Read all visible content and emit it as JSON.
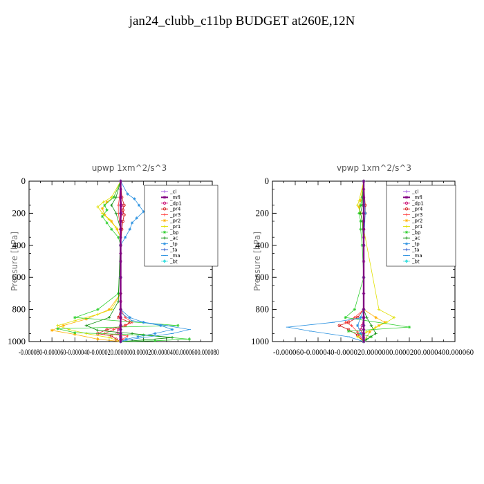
{
  "title": "jan24_clubb_c11bp  BUDGET at260E,12N",
  "chart_data": [
    {
      "type": "line",
      "title": "upwp   1xm^2/s^3",
      "ylabel": "Pressure [hPa]",
      "ylim": [
        1000,
        0
      ],
      "y_ticks": [
        "0",
        "200",
        "400",
        "600",
        "800",
        "1000"
      ],
      "x_tick_labels": "-0.000080-0.000060-0.000040-0.000020.0000000.0000200.0000400.0000600.000080",
      "legend_position": "top-right",
      "series": [
        {
          "name": "_cl",
          "color": "#a050e0",
          "x": [
            0,
            0,
            0,
            0,
            0,
            0,
            0,
            0,
            0,
            0,
            0,
            0,
            0,
            0,
            0,
            0,
            0,
            0,
            0,
            0,
            0,
            0,
            0
          ],
          "y": [
            0,
            50,
            100,
            150,
            200,
            250,
            300,
            350,
            400,
            500,
            600,
            700,
            750,
            800,
            850,
            900,
            925,
            950,
            970,
            985,
            1000,
            500,
            0
          ]
        },
        {
          "name": "_mfl",
          "color": "#800080",
          "x": [
            0,
            0,
            0,
            0,
            0,
            0,
            0,
            0,
            0,
            0,
            0,
            0,
            0,
            0,
            0,
            0,
            0,
            0,
            0,
            0,
            0
          ],
          "y": [
            0,
            50,
            100,
            150,
            200,
            250,
            300,
            350,
            400,
            450,
            500,
            600,
            700,
            800,
            850,
            900,
            925,
            950,
            970,
            985,
            1000
          ]
        },
        {
          "name": "_dp1",
          "color": "#c8006e",
          "x": [
            0,
            0,
            1e-06,
            1e-06,
            0,
            0,
            0,
            0,
            0,
            0,
            0,
            -2e-06,
            -3e-06,
            0,
            0,
            0
          ],
          "y": [
            0,
            100,
            150,
            200,
            250,
            300,
            400,
            600,
            750,
            850,
            900,
            925,
            950,
            970,
            985,
            1000
          ]
        },
        {
          "name": "_pr4",
          "color": "#d01010",
          "x": [
            0,
            1e-06,
            3e-06,
            2e-06,
            3e-06,
            2e-06,
            1e-06,
            0,
            0,
            -2e-06,
            8e-06,
            4e-06,
            -1.2e-05,
            -2e-05,
            -8e-06,
            -4e-06,
            0
          ],
          "y": [
            0,
            100,
            150,
            180,
            210,
            250,
            300,
            400,
            800,
            850,
            880,
            900,
            925,
            950,
            965,
            985,
            1000
          ]
        },
        {
          "name": "_pr3",
          "color": "#ff4040",
          "x": [
            0,
            -1e-06,
            -2e-06,
            -2e-06,
            -1e-06,
            0,
            0,
            4e-06,
            1e-05,
            4e-06,
            -6e-06,
            -1.4e-05,
            6e-06,
            2e-06,
            0
          ],
          "y": [
            0,
            100,
            150,
            200,
            250,
            300,
            800,
            850,
            880,
            900,
            925,
            950,
            965,
            985,
            1000
          ]
        },
        {
          "name": "_pr2",
          "color": "#ffb000",
          "x": [
            0,
            -6e-06,
            -1.2e-05,
            -1.6e-05,
            -1.4e-05,
            -8e-06,
            -3e-06,
            0,
            0,
            -1e-05,
            -3e-05,
            -5e-05,
            -6e-05,
            -4e-05,
            -2e-05,
            0
          ],
          "y": [
            0,
            100,
            130,
            170,
            210,
            250,
            300,
            350,
            700,
            800,
            860,
            900,
            930,
            955,
            985,
            1000
          ]
        },
        {
          "name": "_pr1",
          "color": "#e0e000",
          "x": [
            0,
            -8e-06,
            -1.5e-05,
            -2e-05,
            -1.6e-05,
            -1e-05,
            -4e-06,
            0,
            0,
            -8e-06,
            -2e-05,
            -4e-05,
            -5.5e-05,
            -4.5e-05,
            -3e-05,
            -1e-05,
            0
          ],
          "y": [
            0,
            100,
            130,
            160,
            200,
            240,
            290,
            350,
            700,
            800,
            830,
            870,
            900,
            925,
            950,
            975,
            1000
          ]
        },
        {
          "name": "_bp",
          "color": "#30d030",
          "x": [
            0,
            -6e-06,
            -1.4e-05,
            -1.2e-05,
            -1.6e-05,
            -1.2e-05,
            -8e-06,
            -2e-06,
            0,
            -2e-06,
            -2e-05,
            -4e-05,
            5e-05,
            -5.5e-05,
            -4e-05,
            2e-05,
            6e-05,
            3e-05,
            0
          ],
          "y": [
            0,
            100,
            150,
            180,
            220,
            260,
            300,
            350,
            400,
            700,
            800,
            850,
            900,
            920,
            945,
            960,
            985,
            995,
            1000
          ]
        },
        {
          "name": "_ac",
          "color": "#109010",
          "x": [
            0,
            -4e-06,
            -8e-06,
            -4e-06,
            0,
            -2e-06,
            -1e-05,
            -3e-05,
            -2e-05,
            1e-05,
            4.5e-05,
            2e-05,
            0
          ],
          "y": [
            0,
            100,
            150,
            200,
            300,
            750,
            850,
            900,
            930,
            950,
            975,
            990,
            1000
          ]
        },
        {
          "name": "_tp",
          "color": "#2890e0",
          "x": [
            0,
            6e-06,
            1.2e-05,
            1.6e-05,
            2e-05,
            1.4e-05,
            1e-05,
            8e-06,
            4e-06,
            0,
            0,
            8e-06,
            2e-05,
            3.5e-05,
            4.5e-05,
            3e-05,
            1.5e-05,
            5e-06,
            0
          ],
          "y": [
            0,
            80,
            110,
            150,
            190,
            230,
            260,
            300,
            350,
            400,
            800,
            850,
            880,
            900,
            925,
            950,
            970,
            985,
            1000
          ]
        },
        {
          "name": "_ta",
          "color": "#1e50c8",
          "x": [
            0,
            0,
            0,
            0,
            0,
            0,
            0,
            0,
            0,
            0,
            0
          ],
          "y": [
            0,
            200,
            400,
            600,
            800,
            900,
            925,
            950,
            970,
            985,
            1000
          ]
        },
        {
          "name": "_ma",
          "color": "#2890e0",
          "x": [
            0,
            0,
            1e-05,
            4e-05,
            6e-05,
            4.5e-05,
            1e-05,
            0
          ],
          "y": [
            0,
            820,
            870,
            900,
            925,
            950,
            985,
            1000
          ]
        },
        {
          "name": "_bt",
          "color": "#40e0e0",
          "x": [
            0,
            0,
            0,
            0,
            0,
            0,
            0,
            0,
            0,
            0
          ],
          "y": [
            0,
            200,
            400,
            600,
            800,
            900,
            925,
            950,
            975,
            1000
          ]
        }
      ]
    },
    {
      "type": "line",
      "title": "vpwp   1xm^2/s^3",
      "ylabel": "Pressure [hPa]",
      "ylim": [
        1000,
        0
      ],
      "y_ticks": [
        "0",
        "200",
        "400",
        "600",
        "800",
        "1000"
      ],
      "x_tick_labels": "-0.000060-0.000040-0.000020.0000000.0000200.0000400.000060",
      "legend_position": "top-right",
      "series": [
        {
          "name": "_cl",
          "color": "#a050e0",
          "x": [
            0,
            0,
            0,
            0,
            0,
            0,
            0,
            0,
            0,
            0,
            0,
            0,
            0,
            0,
            0,
            0
          ],
          "y": [
            0,
            50,
            100,
            200,
            300,
            400,
            500,
            600,
            700,
            800,
            850,
            900,
            925,
            950,
            975,
            1000
          ]
        },
        {
          "name": "_mfl",
          "color": "#800080",
          "x": [
            0,
            0,
            0,
            0,
            0,
            0,
            0,
            0,
            0,
            0,
            0,
            0,
            0,
            0,
            0,
            0,
            0,
            0,
            0,
            0
          ],
          "y": [
            0,
            50,
            100,
            150,
            200,
            250,
            300,
            350,
            400,
            500,
            600,
            700,
            800,
            850,
            900,
            925,
            950,
            970,
            985,
            1000
          ]
        },
        {
          "name": "_dp1",
          "color": "#c8006e",
          "x": [
            0,
            0,
            0,
            0,
            0,
            -1e-06,
            -2e-06,
            -1e-06,
            0
          ],
          "y": [
            0,
            200,
            400,
            800,
            850,
            900,
            925,
            950,
            1000
          ]
        },
        {
          "name": "_pr4",
          "color": "#d01010",
          "x": [
            0,
            1e-06,
            1e-06,
            0,
            0,
            -4e-06,
            -1e-05,
            -1.6e-05,
            -1e-05,
            -4e-06,
            0
          ],
          "y": [
            0,
            150,
            200,
            300,
            800,
            850,
            880,
            900,
            925,
            960,
            1000
          ]
        },
        {
          "name": "_pr3",
          "color": "#ff4040",
          "x": [
            0,
            0,
            0,
            0,
            -6e-06,
            -1.2e-05,
            -8e-06,
            -4e-06,
            0
          ],
          "y": [
            0,
            200,
            400,
            800,
            850,
            880,
            900,
            940,
            1000
          ]
        },
        {
          "name": "_pr2",
          "color": "#ffb000",
          "x": [
            0,
            -2e-06,
            -3e-06,
            -2e-06,
            0,
            0,
            8e-06,
            1.4e-05,
            1e-05,
            4e-06,
            0
          ],
          "y": [
            0,
            120,
            160,
            200,
            300,
            800,
            850,
            880,
            900,
            940,
            1000
          ]
        },
        {
          "name": "_pr1",
          "color": "#e0e000",
          "x": [
            0,
            -3e-06,
            -4e-06,
            -2e-06,
            0,
            1e-05,
            2e-05,
            1.5e-05,
            8e-06,
            2e-06,
            -4e-06,
            0
          ],
          "y": [
            0,
            120,
            150,
            200,
            300,
            800,
            850,
            880,
            910,
            940,
            970,
            1000
          ]
        },
        {
          "name": "_bp",
          "color": "#30d030",
          "x": [
            0,
            -1e-06,
            -2e-06,
            -3e-06,
            -2e-06,
            -2e-06,
            -1e-06,
            0,
            -6e-06,
            -1.2e-05,
            3e-05,
            -1e-05,
            5e-06,
            0
          ],
          "y": [
            0,
            100,
            150,
            200,
            250,
            300,
            400,
            600,
            800,
            850,
            910,
            935,
            970,
            1000
          ]
        },
        {
          "name": "_ac",
          "color": "#109010",
          "x": [
            0,
            -1e-06,
            -2e-06,
            -1e-06,
            0,
            0,
            2e-06,
            5e-06,
            8e-06,
            2e-06,
            0
          ],
          "y": [
            0,
            150,
            200,
            250,
            400,
            800,
            850,
            900,
            950,
            985,
            1000
          ]
        },
        {
          "name": "_tp",
          "color": "#2890e0",
          "x": [
            0,
            1e-06,
            0,
            0,
            -2e-06,
            -4e-06,
            -2e-06,
            0
          ],
          "y": [
            0,
            200,
            400,
            800,
            850,
            900,
            950,
            1000
          ]
        },
        {
          "name": "_ta",
          "color": "#1e50c8",
          "x": [
            0,
            0,
            0,
            0,
            0,
            0,
            0
          ],
          "y": [
            0,
            200,
            400,
            600,
            800,
            900,
            1000
          ]
        },
        {
          "name": "_ma",
          "color": "#2890e0",
          "x": [
            0,
            0,
            -2e-05,
            -5e-05,
            -3.5e-05,
            -1e-05,
            0
          ],
          "y": [
            0,
            850,
            880,
            910,
            935,
            970,
            1000
          ]
        },
        {
          "name": "_bt",
          "color": "#40e0e0",
          "x": [
            0,
            0,
            0,
            0,
            0,
            0,
            0,
            0,
            0
          ],
          "y": [
            0,
            200,
            400,
            600,
            800,
            900,
            950,
            985,
            1000
          ]
        }
      ]
    }
  ]
}
